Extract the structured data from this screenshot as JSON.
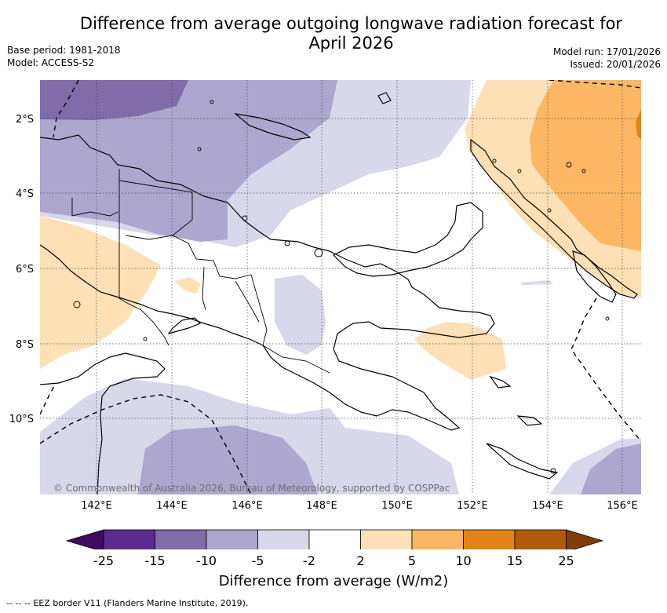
{
  "header": {
    "title_line1": "Difference from average outgoing longwave radiation forecast for",
    "title_line2": "April 2026",
    "base_period": "Base period: 1981-2018",
    "model": "Model: ACCESS-S2",
    "model_run": "Model run: 17/01/2026",
    "issued": "Issued: 20/01/2026"
  },
  "map": {
    "lat_labels": [
      "2°S",
      "4°S",
      "6°S",
      "8°S",
      "10°S"
    ],
    "lon_labels": [
      "142°E",
      "144°E",
      "146°E",
      "148°E",
      "150°E",
      "152°E",
      "154°E",
      "156°E"
    ],
    "copyright": "© Commonwealth of Australia 2026, Bureau of Meteorology, supported by COSPPac"
  },
  "colorbar": {
    "colors": [
      "#3f0a60",
      "#5b2a8c",
      "#7f6ca8",
      "#ada6cf",
      "#d7d8ea",
      "#ffffff",
      "#fde0b5",
      "#fbb764",
      "#e08419",
      "#b15a07",
      "#7f3b08"
    ],
    "labels": [
      "-25",
      "-15",
      "-10",
      "-5",
      "-2",
      "2",
      "5",
      "10",
      "15",
      "25"
    ],
    "title": "Difference from average (W/m2)"
  },
  "legend": {
    "eez_symbol": "--  --  --",
    "eez_text": "EEZ border V11 (Flanders Marine Institute, 2019)."
  }
}
